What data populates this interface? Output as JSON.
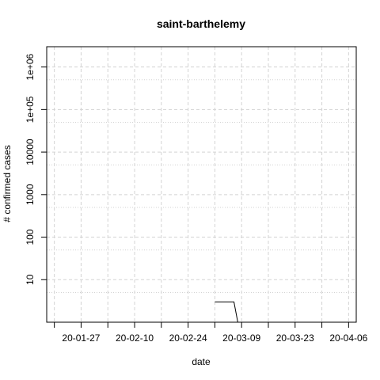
{
  "chart_data": {
    "type": "line",
    "title": "saint-barthelemy",
    "xlabel": "date",
    "ylabel": "# confirmed cases",
    "y_scale": "log",
    "x_ticks": [
      "2020-01-27",
      "2020-02-10",
      "2020-02-24",
      "2020-03-09",
      "2020-03-23",
      "2020-04-06"
    ],
    "x_tick_labels": [
      "20-01-27",
      "20-02-10",
      "20-02-24",
      "20-03-09",
      "20-03-23",
      "20-04-06"
    ],
    "y_ticks": [
      10,
      100,
      1000,
      10000,
      100000,
      1000000
    ],
    "y_tick_labels": [
      "10",
      "100",
      "1000",
      "10000",
      "1e+05",
      "1e+06"
    ],
    "xlim": [
      "2020-01-18",
      "2020-04-08"
    ],
    "ylim": [
      1,
      3000000
    ],
    "grid": true,
    "series": [
      {
        "x": [
          "2020-03-02",
          "2020-03-03",
          "2020-03-04",
          "2020-03-05",
          "2020-03-06",
          "2020-03-07",
          "2020-03-08",
          "2020-03-09"
        ],
        "y": [
          3,
          3,
          3,
          3,
          3,
          3,
          1,
          1
        ]
      }
    ]
  }
}
